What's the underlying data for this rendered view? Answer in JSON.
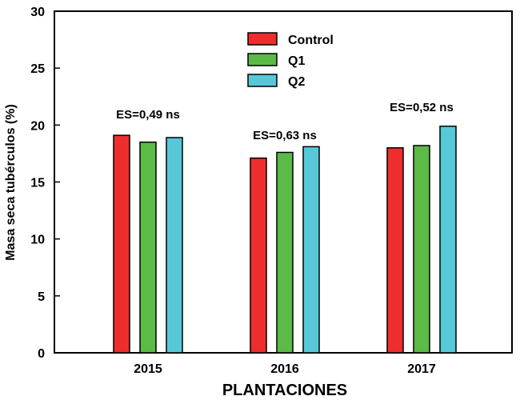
{
  "chart_data": {
    "type": "bar",
    "title": "",
    "xlabel": "PLANTACIONES",
    "ylabel": "Masa seca tubérculos (%)",
    "ylim": [
      0,
      30
    ],
    "yticks": [
      0,
      5,
      10,
      15,
      20,
      25,
      30
    ],
    "categories": [
      "2015",
      "2016",
      "2017"
    ],
    "series": [
      {
        "name": "Control",
        "color": "#ee2d2d",
        "values": [
          19.1,
          17.1,
          18.0
        ]
      },
      {
        "name": "Q1",
        "color": "#5cba47",
        "values": [
          18.5,
          17.6,
          18.2
        ]
      },
      {
        "name": "Q2",
        "color": "#57c8d8",
        "values": [
          18.9,
          18.1,
          19.9
        ]
      }
    ],
    "annotations": [
      "ES=0,49 ns",
      "ES=0,63 ns",
      "ES=0,52 ns"
    ],
    "legend": "top-center",
    "grid": false
  }
}
